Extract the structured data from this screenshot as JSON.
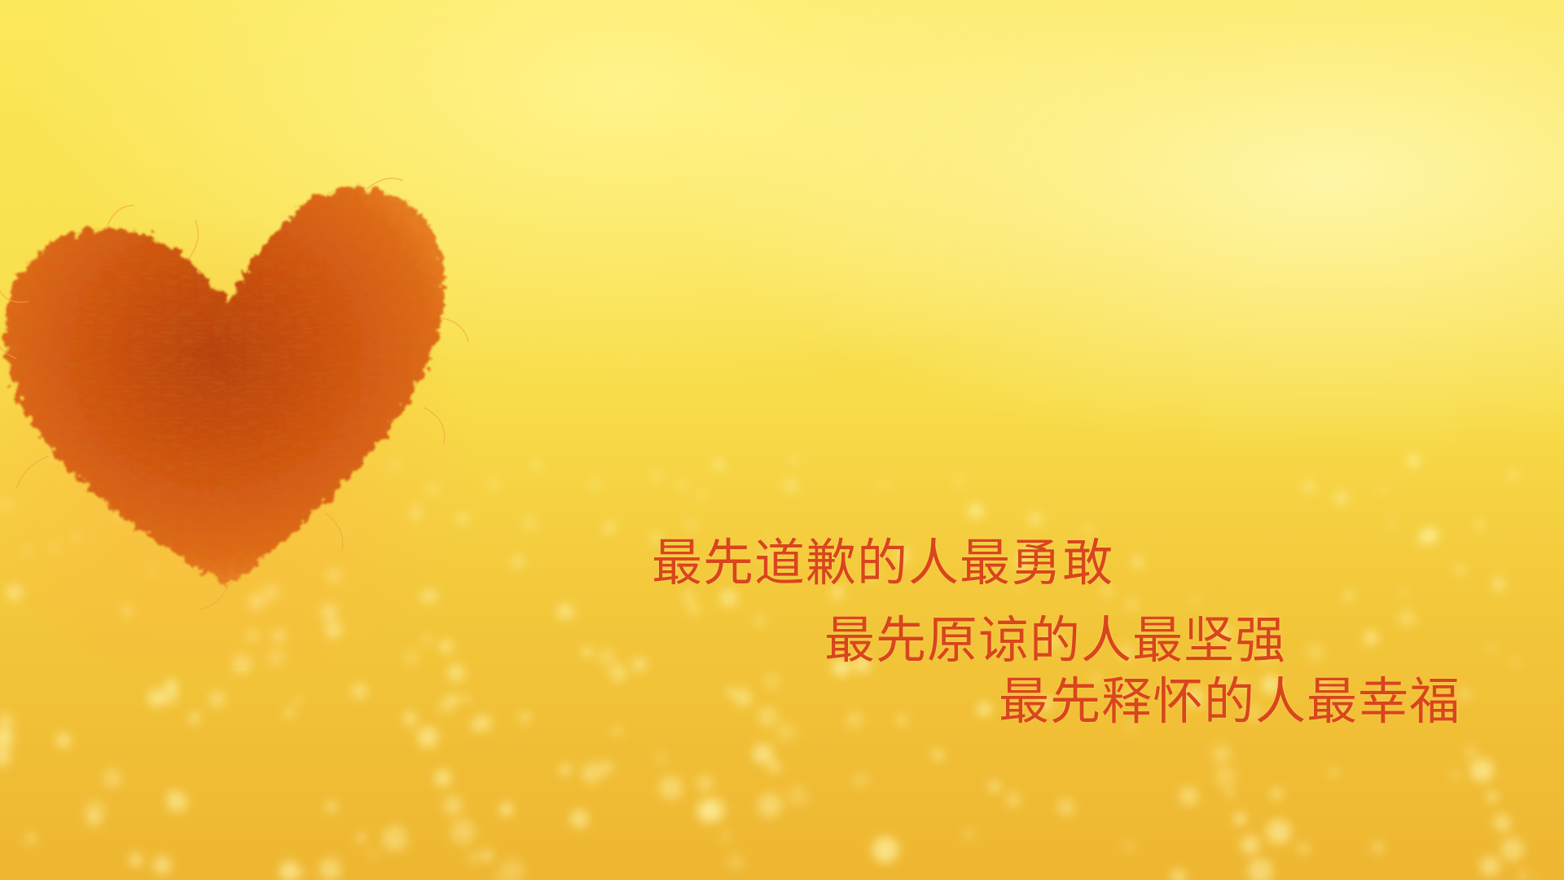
{
  "quote": {
    "lines": [
      "最先道歉的人最勇敢",
      "最先原谅的人最坚强",
      "最先释怀的人最幸福"
    ]
  },
  "colors": {
    "text": "#d9451c",
    "background_light": "#fff38a",
    "background_base": "#f8dc49",
    "heart": "#d2520e"
  },
  "icons": {
    "heart": "felt-heart"
  }
}
